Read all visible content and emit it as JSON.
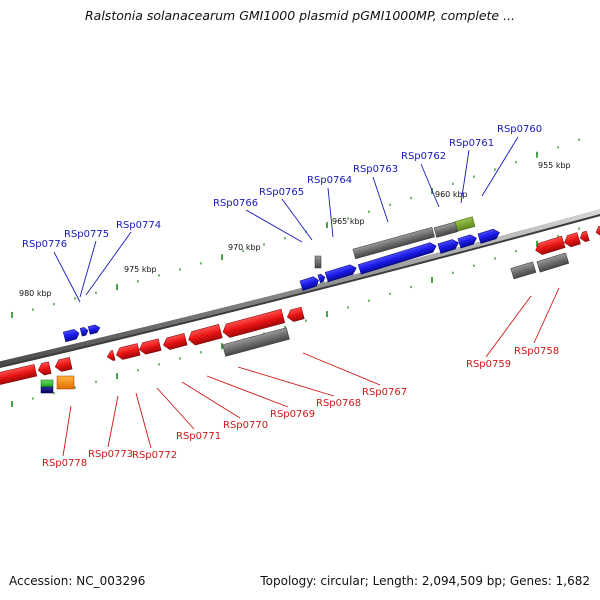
{
  "title": "Ralstonia solanacearum GMI1000 plasmid pGMI1000MP, complete ...",
  "footer": {
    "accession": "Accession: NC_003296",
    "topology": "Topology: circular; Length: 2,094,509 bp; Genes: 1,682"
  },
  "colors": {
    "forward_gene": "#1a1ae6",
    "reverse_gene": "#e81414",
    "pseudo_gene": "#6e6e6e",
    "label_top": "#1818b8",
    "label_bottom": "#cc1818",
    "backbone": "#8c8c8c",
    "ticks": "#1e8a1e"
  },
  "kbp_labels": [
    "980 kbp",
    "975 kbp",
    "970 kbp",
    "965 kbp",
    "960 kbp",
    "955 kbp"
  ],
  "top_labels": [
    "RSp0776",
    "RSp0775",
    "RSp0774",
    "RSp0766",
    "RSp0765",
    "RSp0764",
    "RSp0763",
    "RSp0762",
    "RSp0761",
    "RSp0760"
  ],
  "bottom_labels": [
    "RSp0778",
    "RSp0773",
    "RSp0772",
    "RSp0771",
    "RSp0770",
    "RSp0769",
    "RSp0768",
    "RSp0767",
    "RSp0759",
    "RSp0758"
  ]
}
